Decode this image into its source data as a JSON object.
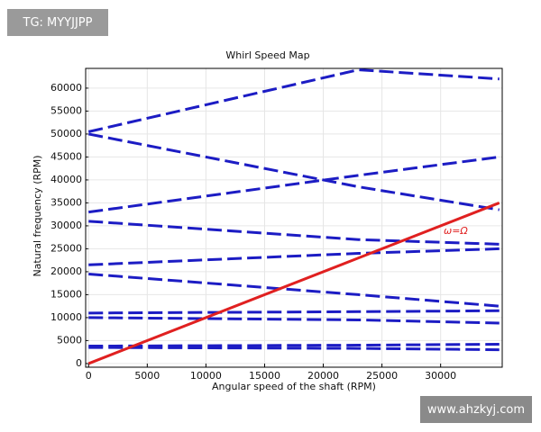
{
  "chart_data": {
    "type": "line",
    "title": "Whirl Speed Map",
    "x_label": "Angular speed of the shaft (RPM)",
    "y_label": "Natural frequency (RPM)",
    "annotation": "ω=Ω",
    "x": [
      0,
      23000,
      35000
    ],
    "series": [
      {
        "color": "#1c1cc4",
        "values": [
          50500,
          64000,
          62000
        ]
      },
      {
        "color": "#1c1cc4",
        "values": [
          50000,
          38500,
          33500
        ]
      },
      {
        "color": "#1c1cc4",
        "values": [
          33000,
          41000,
          45000
        ]
      },
      {
        "color": "#1c1cc4",
        "values": [
          31000,
          27000,
          26000
        ]
      },
      {
        "color": "#1c1cc4",
        "values": [
          21500,
          24000,
          25000
        ]
      },
      {
        "color": "#1c1cc4",
        "values": [
          19500,
          15000,
          12500
        ]
      },
      {
        "color": "#1c1cc4",
        "values": [
          11000,
          11300,
          11500
        ]
      },
      {
        "color": "#1c1cc4",
        "values": [
          10000,
          9500,
          8800
        ]
      },
      {
        "color": "#1c1cc4",
        "values": [
          3800,
          4000,
          4200
        ]
      },
      {
        "color": "#1c1cc4",
        "values": [
          3500,
          3300,
          3000
        ]
      },
      {
        "color": "#e02020",
        "values": [
          0,
          23000,
          35000
        ]
      }
    ],
    "xlim": [
      -250,
      35250
    ],
    "xticks": [
      0,
      5000,
      10000,
      15000,
      20000,
      25000,
      30000
    ],
    "ylim": [
      -800,
      64300
    ],
    "yticks": [
      0,
      5000,
      10000,
      15000,
      20000,
      25000,
      30000,
      35000,
      40000,
      45000,
      50000,
      55000,
      60000
    ],
    "grid": true
  },
  "watermarks": {
    "top_left": "TG: MYYJJPP",
    "bottom_right": "www.ahzkyj.com"
  }
}
